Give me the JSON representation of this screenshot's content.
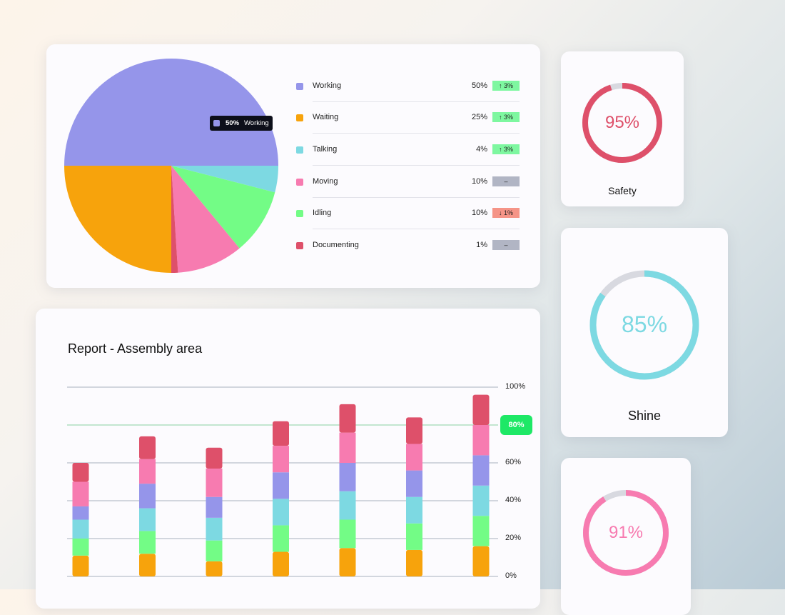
{
  "pie_card": {
    "tooltip": {
      "value": "50%",
      "label": "Working"
    },
    "legend": [
      {
        "label": "Working",
        "value": "50%",
        "change": "↑ 3%",
        "trend": "up",
        "color": "#9595ea"
      },
      {
        "label": "Waiting",
        "value": "25%",
        "change": "↑ 3%",
        "trend": "up",
        "color": "#f7a30c"
      },
      {
        "label": "Talking",
        "value": "4%",
        "change": "↑ 3%",
        "trend": "up",
        "color": "#7dd9e2"
      },
      {
        "label": "Moving",
        "value": "10%",
        "change": "–",
        "trend": "flat",
        "color": "#f77bb0"
      },
      {
        "label": "Idling",
        "value": "10%",
        "change": "↓ 1%",
        "trend": "down",
        "color": "#73fc86"
      },
      {
        "label": "Documenting",
        "value": "1%",
        "change": "–",
        "trend": "flat",
        "color": "#de506a"
      }
    ],
    "trend_colors": {
      "up": "#7ef7a0",
      "down": "#f59487",
      "flat": "#b1b5c4"
    }
  },
  "chart_data": [
    {
      "type": "pie",
      "categories": [
        "Working",
        "Talking",
        "Idling",
        "Moving",
        "Documenting",
        "Waiting"
      ],
      "values": [
        50,
        4,
        10,
        10,
        1,
        25
      ],
      "colors": [
        "#9595ea",
        "#7dd9e2",
        "#73fc86",
        "#f77bb0",
        "#de506a",
        "#f7a30c"
      ]
    },
    {
      "type": "bar",
      "stacked": true,
      "title": "Report - Assembly area",
      "ylim": [
        0,
        100
      ],
      "yticks": [
        "0%",
        "20%",
        "40%",
        "60%",
        "80%",
        "100%"
      ],
      "highlight_tick": "80%",
      "grid": true,
      "series": [
        {
          "color": "#f7a30c",
          "values": [
            11,
            12,
            8,
            13,
            15,
            14,
            16
          ]
        },
        {
          "color": "#73fc86",
          "values": [
            9,
            12,
            11,
            14,
            15,
            14,
            16
          ]
        },
        {
          "color": "#7dd9e2",
          "values": [
            10,
            12,
            12,
            14,
            15,
            14,
            16
          ]
        },
        {
          "color": "#9595ea",
          "values": [
            7,
            13,
            11,
            14,
            15,
            14,
            16
          ]
        },
        {
          "color": "#f77bb0",
          "values": [
            13,
            13,
            15,
            14,
            16,
            14,
            16
          ]
        },
        {
          "color": "#de506a",
          "values": [
            10,
            12,
            11,
            13,
            15,
            14,
            16
          ]
        }
      ]
    }
  ],
  "rings": [
    {
      "label": "Safety",
      "value": 95,
      "text": "95%",
      "color": "#de506a"
    },
    {
      "label": "Shine",
      "value": 85,
      "text": "85%",
      "color": "#7dd9e2"
    },
    {
      "label": "",
      "value": 91,
      "text": "91%",
      "color": "#f77bb0"
    }
  ],
  "ring_track_color": "#d8d9e0"
}
